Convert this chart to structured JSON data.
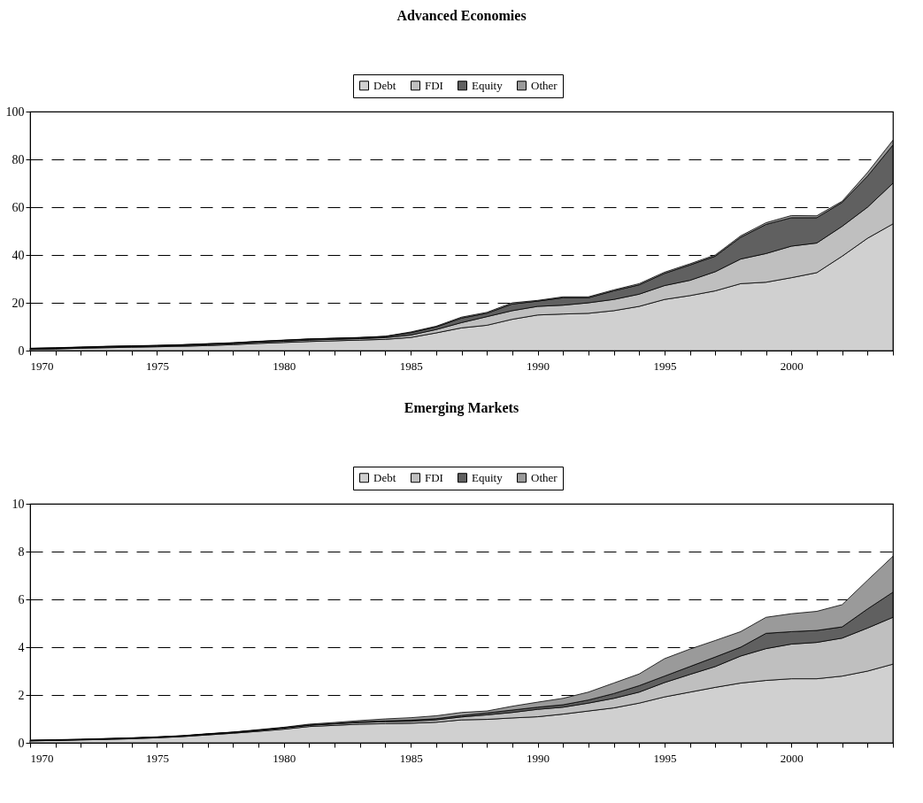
{
  "chart_data": [
    {
      "type": "area",
      "stacked": true,
      "title": "Advanced Economies",
      "legend": "top",
      "grid": "y",
      "line_style": "dashed",
      "x": [
        1970,
        1971,
        1972,
        1973,
        1974,
        1975,
        1976,
        1977,
        1978,
        1979,
        1980,
        1981,
        1982,
        1983,
        1984,
        1985,
        1986,
        1987,
        1988,
        1989,
        1990,
        1991,
        1992,
        1993,
        1994,
        1995,
        1996,
        1997,
        1998,
        1999,
        2000,
        2001,
        2002,
        2003,
        2004
      ],
      "xlim": [
        1970,
        2004
      ],
      "xticks": [
        1970,
        {
          "value": 1971,
          "label": null
        },
        {
          "value": 1972,
          "label": null
        },
        {
          "value": 1973,
          "label": null
        },
        {
          "value": 1974,
          "label": null
        },
        1975,
        {
          "value": 1976,
          "label": null
        },
        {
          "value": 1977,
          "label": null
        },
        {
          "value": 1978,
          "label": null
        },
        {
          "value": 1979,
          "label": null
        },
        1980,
        {
          "value": 1981,
          "label": null
        },
        {
          "value": 1982,
          "label": null
        },
        {
          "value": 1983,
          "label": null
        },
        {
          "value": 1984,
          "label": null
        },
        1985,
        {
          "value": 1986,
          "label": null
        },
        {
          "value": 1987,
          "label": null
        },
        {
          "value": 1988,
          "label": null
        },
        {
          "value": 1989,
          "label": null
        },
        1990,
        {
          "value": 1991,
          "label": null
        },
        {
          "value": 1992,
          "label": null
        },
        {
          "value": 1993,
          "label": null
        },
        {
          "value": 1994,
          "label": null
        },
        1995,
        {
          "value": 1996,
          "label": null
        },
        {
          "value": 1997,
          "label": null
        },
        {
          "value": 1998,
          "label": null
        },
        {
          "value": 1999,
          "label": null
        },
        2000,
        {
          "value": 2001,
          "label": null
        },
        {
          "value": 2002,
          "label": null
        },
        {
          "value": 2003,
          "label": null
        },
        {
          "value": 2004,
          "label": null
        }
      ],
      "ylim": [
        0,
        100
      ],
      "yticks": [
        0,
        20,
        40,
        60,
        80,
        100
      ],
      "series": [
        {
          "name": "Debt",
          "color": "#d0d0d0",
          "values": [
            0.5,
            0.7,
            1,
            1.2,
            1.4,
            1.6,
            1.8,
            2.1,
            2.5,
            3,
            3.4,
            3.8,
            4.1,
            4.4,
            4.7,
            5.5,
            7.4,
            9.5,
            10.6,
            13.1,
            14.9,
            15.3,
            15.6,
            16.7,
            18.5,
            21.4,
            23,
            25,
            28,
            28.6,
            30.5,
            32.6,
            39.5,
            47,
            53
          ]
        },
        {
          "name": "FDI",
          "color": "#bfbfbf",
          "values": [
            0.2,
            0.2,
            0.2,
            0.3,
            0.3,
            0.3,
            0.3,
            0.4,
            0.4,
            0.5,
            0.5,
            0.6,
            0.6,
            0.6,
            0.7,
            1,
            1.4,
            2.2,
            3.6,
            3.6,
            3.6,
            3.7,
            4.4,
            4.7,
            5.1,
            5.8,
            6.4,
            8,
            10.3,
            12,
            13.2,
            12.4,
            12.5,
            13,
            17
          ]
        },
        {
          "name": "Equity",
          "color": "#606060",
          "values": [
            0.2,
            0.2,
            0.2,
            0.2,
            0.2,
            0.2,
            0.3,
            0.3,
            0.3,
            0.3,
            0.4,
            0.4,
            0.4,
            0.4,
            0.5,
            1,
            1.1,
            1.9,
            1.4,
            2.8,
            2.2,
            3.1,
            2.1,
            3.6,
            3.9,
            5.1,
            6.4,
            6.5,
            9.1,
            12.2,
            11.9,
            10.6,
            10,
            13,
            16
          ]
        },
        {
          "name": "Other",
          "color": "#9a9a9a",
          "values": [
            0.1,
            0.1,
            0.1,
            0.1,
            0.1,
            0.1,
            0.1,
            0.1,
            0.1,
            0.1,
            0.1,
            0.1,
            0.1,
            0.1,
            0.1,
            0.3,
            0.3,
            0.4,
            0.4,
            0.5,
            0.3,
            0.4,
            0.4,
            0.4,
            0.5,
            0.5,
            0.5,
            0.5,
            0.6,
            0.7,
            0.9,
            0.8,
            0.5,
            1.5,
            2
          ]
        }
      ]
    },
    {
      "type": "area",
      "stacked": true,
      "title": "Emerging Markets",
      "legend": "top",
      "grid": "y",
      "line_style": "dashed",
      "x": [
        1970,
        1971,
        1972,
        1973,
        1974,
        1975,
        1976,
        1977,
        1978,
        1979,
        1980,
        1981,
        1982,
        1983,
        1984,
        1985,
        1986,
        1987,
        1988,
        1989,
        1990,
        1991,
        1992,
        1993,
        1994,
        1995,
        1996,
        1997,
        1998,
        1999,
        2000,
        2001,
        2002,
        2003,
        2004
      ],
      "xlim": [
        1970,
        2004
      ],
      "xticks": [
        1970,
        {
          "value": 1971,
          "label": null
        },
        {
          "value": 1972,
          "label": null
        },
        {
          "value": 1973,
          "label": null
        },
        {
          "value": 1974,
          "label": null
        },
        1975,
        {
          "value": 1976,
          "label": null
        },
        {
          "value": 1977,
          "label": null
        },
        {
          "value": 1978,
          "label": null
        },
        {
          "value": 1979,
          "label": null
        },
        1980,
        {
          "value": 1981,
          "label": null
        },
        {
          "value": 1982,
          "label": null
        },
        {
          "value": 1983,
          "label": null
        },
        {
          "value": 1984,
          "label": null
        },
        1985,
        {
          "value": 1986,
          "label": null
        },
        {
          "value": 1987,
          "label": null
        },
        {
          "value": 1988,
          "label": null
        },
        {
          "value": 1989,
          "label": null
        },
        1990,
        {
          "value": 1991,
          "label": null
        },
        {
          "value": 1992,
          "label": null
        },
        {
          "value": 1993,
          "label": null
        },
        {
          "value": 1994,
          "label": null
        },
        1995,
        {
          "value": 1996,
          "label": null
        },
        {
          "value": 1997,
          "label": null
        },
        {
          "value": 1998,
          "label": null
        },
        {
          "value": 1999,
          "label": null
        },
        2000,
        {
          "value": 2001,
          "label": null
        },
        {
          "value": 2002,
          "label": null
        },
        {
          "value": 2003,
          "label": null
        },
        {
          "value": 2004,
          "label": null
        }
      ],
      "ylim": [
        0,
        10
      ],
      "yticks": [
        0,
        2,
        4,
        6,
        8,
        10
      ],
      "series": [
        {
          "name": "Debt",
          "color": "#d0d0d0",
          "values": [
            0.08,
            0.1,
            0.12,
            0.14,
            0.17,
            0.21,
            0.26,
            0.33,
            0.4,
            0.48,
            0.57,
            0.68,
            0.73,
            0.78,
            0.8,
            0.82,
            0.86,
            0.96,
            0.98,
            1.04,
            1.09,
            1.2,
            1.33,
            1.46,
            1.66,
            1.92,
            2.12,
            2.32,
            2.5,
            2.61,
            2.68,
            2.68,
            2.79,
            3.0,
            3.29
          ]
        },
        {
          "name": "FDI",
          "color": "#bfbfbf",
          "values": [
            0.01,
            0.01,
            0.01,
            0.02,
            0.02,
            0.02,
            0.02,
            0.03,
            0.03,
            0.04,
            0.05,
            0.05,
            0.06,
            0.07,
            0.08,
            0.08,
            0.1,
            0.12,
            0.19,
            0.23,
            0.31,
            0.29,
            0.33,
            0.4,
            0.46,
            0.6,
            0.74,
            0.87,
            1.13,
            1.33,
            1.45,
            1.52,
            1.59,
            1.8,
            1.96
          ]
        },
        {
          "name": "Equity",
          "color": "#606060",
          "values": [
            0.01,
            0.01,
            0.01,
            0.01,
            0.01,
            0.01,
            0.01,
            0.01,
            0.01,
            0.01,
            0.01,
            0.02,
            0.02,
            0.03,
            0.04,
            0.05,
            0.05,
            0.06,
            0.08,
            0.1,
            0.09,
            0.1,
            0.13,
            0.2,
            0.27,
            0.27,
            0.33,
            0.4,
            0.37,
            0.64,
            0.52,
            0.5,
            0.47,
            0.8,
            1.05
          ]
        },
        {
          "name": "Other",
          "color": "#9a9a9a",
          "values": [
            0.01,
            0.01,
            0.01,
            0.01,
            0.01,
            0.01,
            0.01,
            0.01,
            0.01,
            0.02,
            0.02,
            0.03,
            0.04,
            0.05,
            0.08,
            0.1,
            0.12,
            0.13,
            0.08,
            0.16,
            0.21,
            0.27,
            0.33,
            0.44,
            0.49,
            0.73,
            0.73,
            0.69,
            0.65,
            0.67,
            0.75,
            0.8,
            0.93,
            1.2,
            1.5
          ]
        }
      ]
    }
  ]
}
